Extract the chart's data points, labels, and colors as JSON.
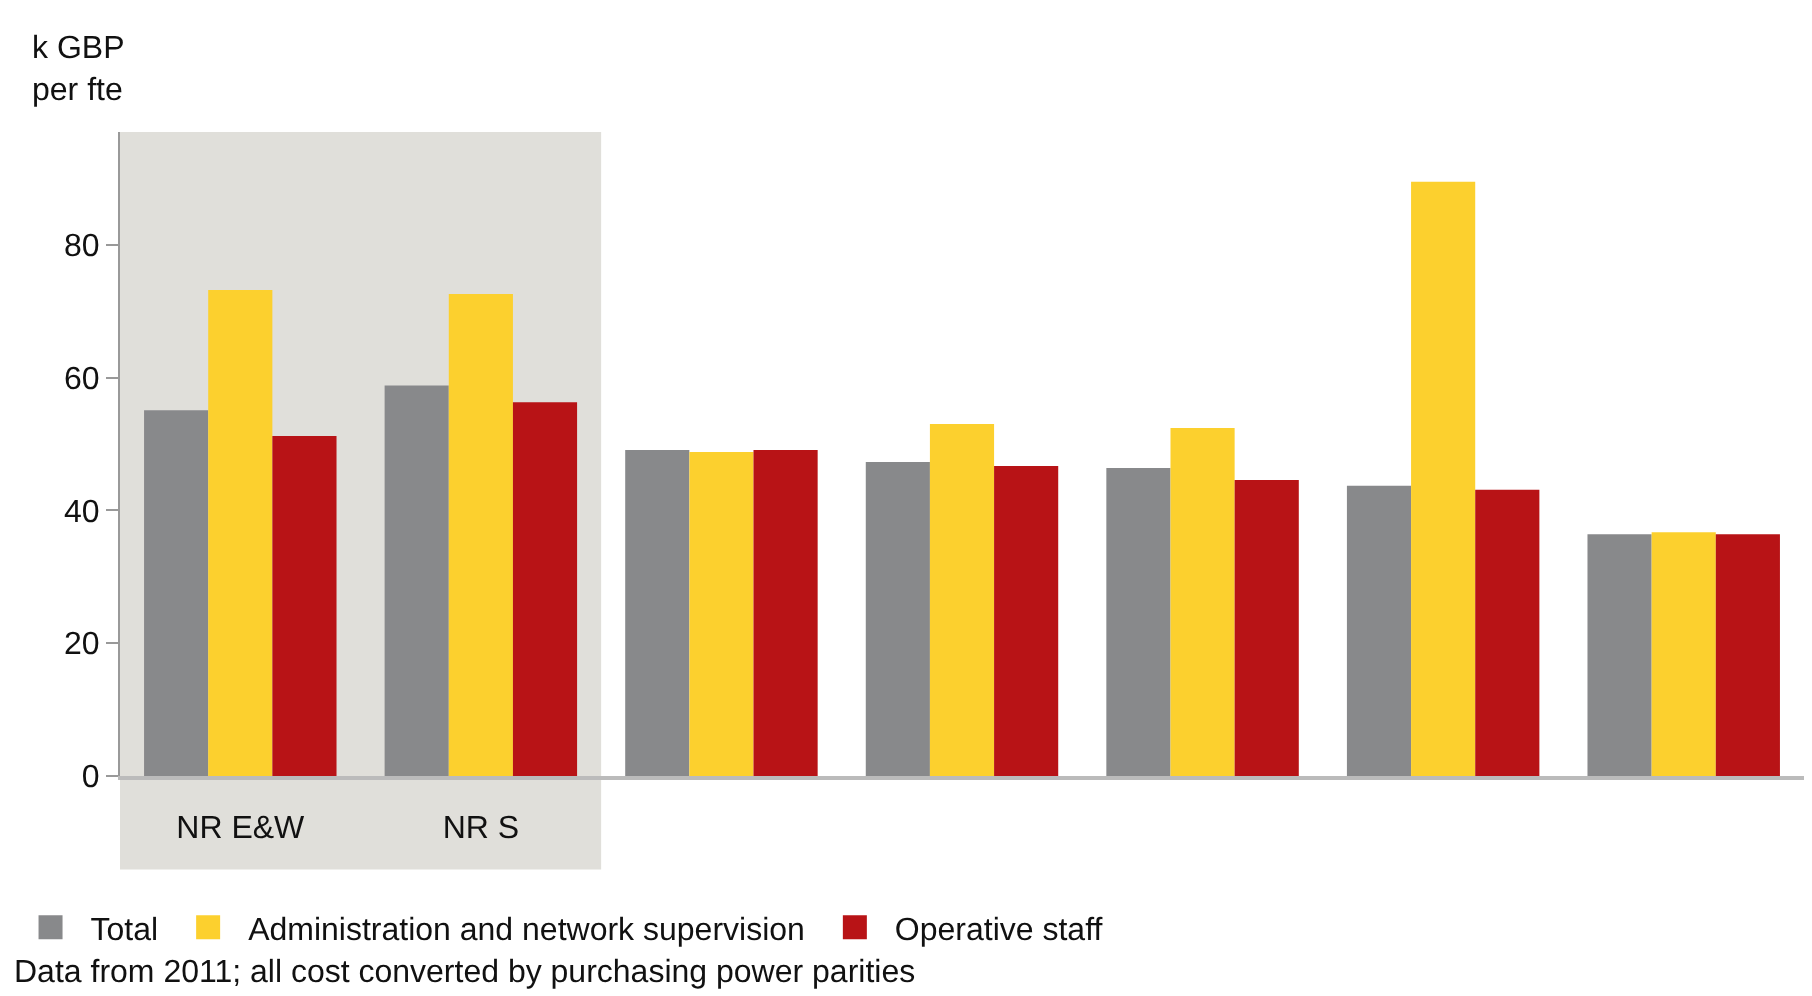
{
  "chart_data": {
    "type": "bar",
    "ylabel": "k GBP\nper fte",
    "categories": [
      "NR E&W",
      "NR S",
      null,
      null,
      null,
      null,
      null
    ],
    "series": [
      {
        "name": "Total",
        "color": "#88898b",
        "values": [
          55.1,
          58.8,
          49.1,
          47.3,
          46.4,
          43.7,
          36.4
        ]
      },
      {
        "name": "Administration and network supervision",
        "color": "#fcd02e",
        "values": [
          73.2,
          72.6,
          48.8,
          53.0,
          52.4,
          89.5,
          36.7
        ]
      },
      {
        "name": "Operative staff",
        "color": "#b81316",
        "values": [
          51.2,
          56.3,
          49.1,
          46.7,
          44.6,
          43.1,
          36.4
        ]
      }
    ],
    "ylim": [
      0,
      97
    ],
    "yticks": [
      0,
      20,
      40,
      60,
      80
    ],
    "grid": false,
    "legend": "bottom",
    "bands": [
      {
        "axis": "x",
        "from": "NR E&W",
        "to": "NR S",
        "color": "#e0dfda"
      }
    ],
    "annotations": [
      "Data from 2011; all cost converted by purchasing power parities"
    ]
  }
}
